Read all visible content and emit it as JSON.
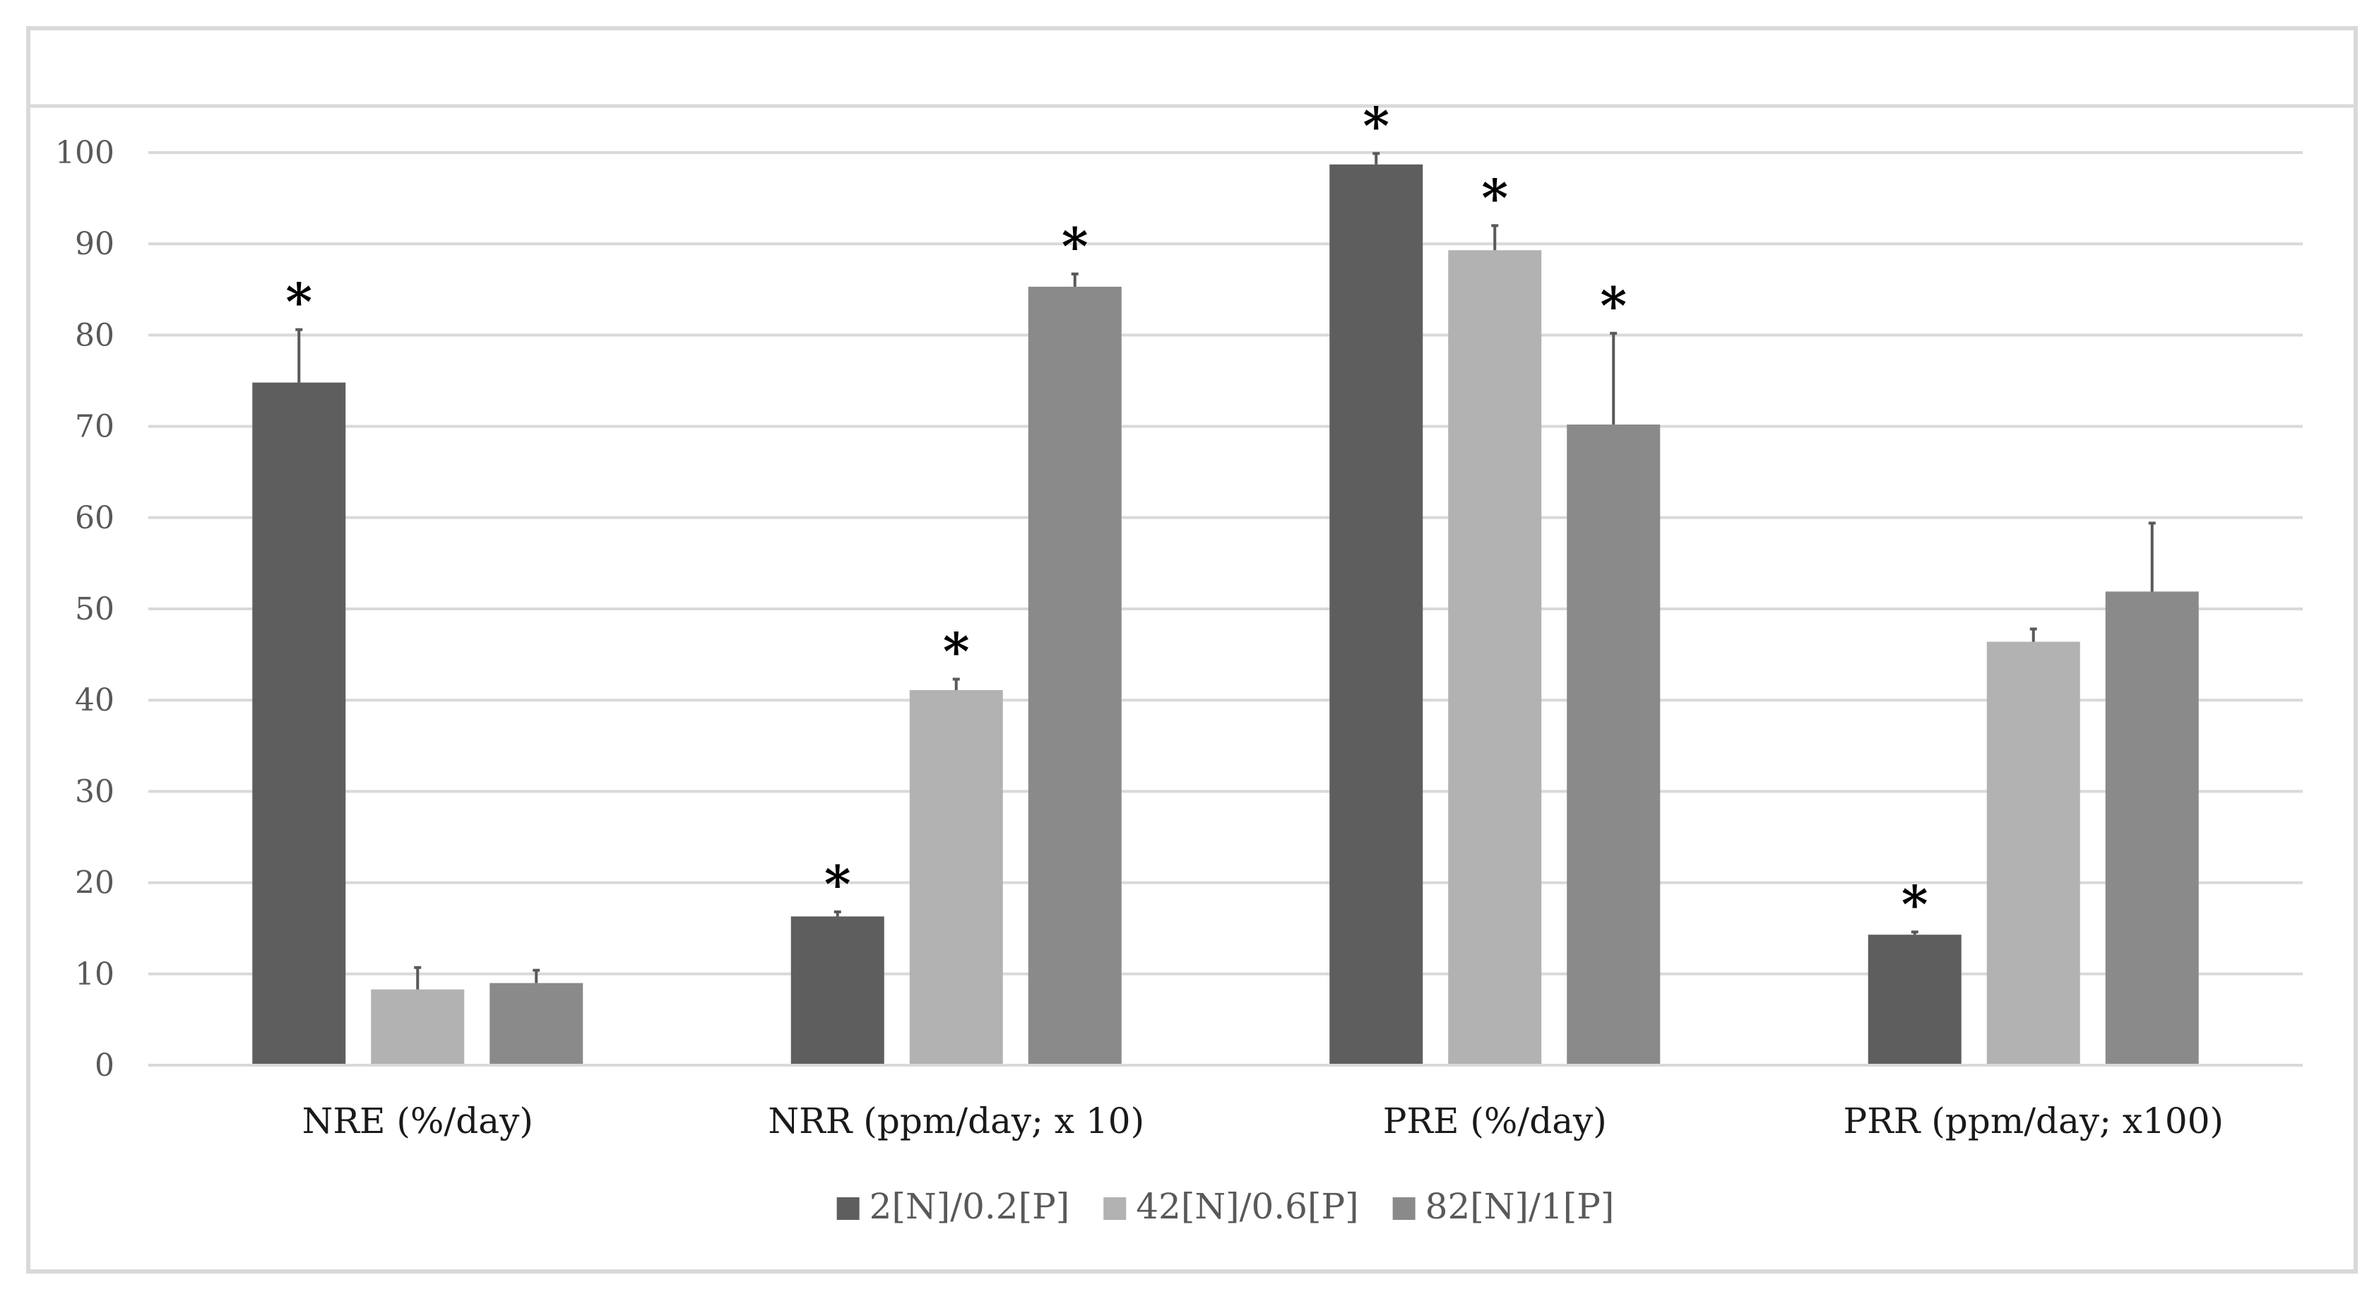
{
  "chart_data": {
    "type": "bar",
    "title": "",
    "xlabel": "",
    "ylabel": "",
    "categories": [
      "NRE (%/day)",
      "NRR (ppm/day; x 10)",
      "PRE (%/day)",
      "PRR (ppm/day; x100)"
    ],
    "ylim": [
      0,
      100
    ],
    "yticks": [
      0,
      10,
      20,
      30,
      40,
      50,
      60,
      70,
      80,
      90,
      100
    ],
    "grid": true,
    "legend_position": "bottom",
    "series": [
      {
        "name": "2[N]/0.2[P]",
        "color": "#5e5e5e",
        "values": [
          74.8,
          16.3,
          98.7,
          14.3
        ],
        "errors": [
          5.8,
          0.5,
          1.2,
          0.3
        ],
        "significant": [
          true,
          true,
          true,
          true
        ]
      },
      {
        "name": "42[N]/0.6[P]",
        "color": "#b2b2b2",
        "values": [
          8.3,
          41.1,
          89.3,
          46.4
        ],
        "errors": [
          2.4,
          1.2,
          2.7,
          1.4
        ],
        "significant": [
          false,
          true,
          true,
          false
        ]
      },
      {
        "name": "82[N]/1[P]",
        "color": "#8a8a8a",
        "values": [
          9.0,
          85.3,
          70.2,
          51.9
        ],
        "errors": [
          1.4,
          1.4,
          10.0,
          7.5
        ],
        "significant": [
          false,
          true,
          true,
          false
        ]
      }
    ],
    "significance_marker": "*"
  },
  "colors": {
    "grid": "#d9d9d9",
    "frame": "#d9d9d9",
    "axis_text": "#595959",
    "error_bar": "#595959"
  }
}
